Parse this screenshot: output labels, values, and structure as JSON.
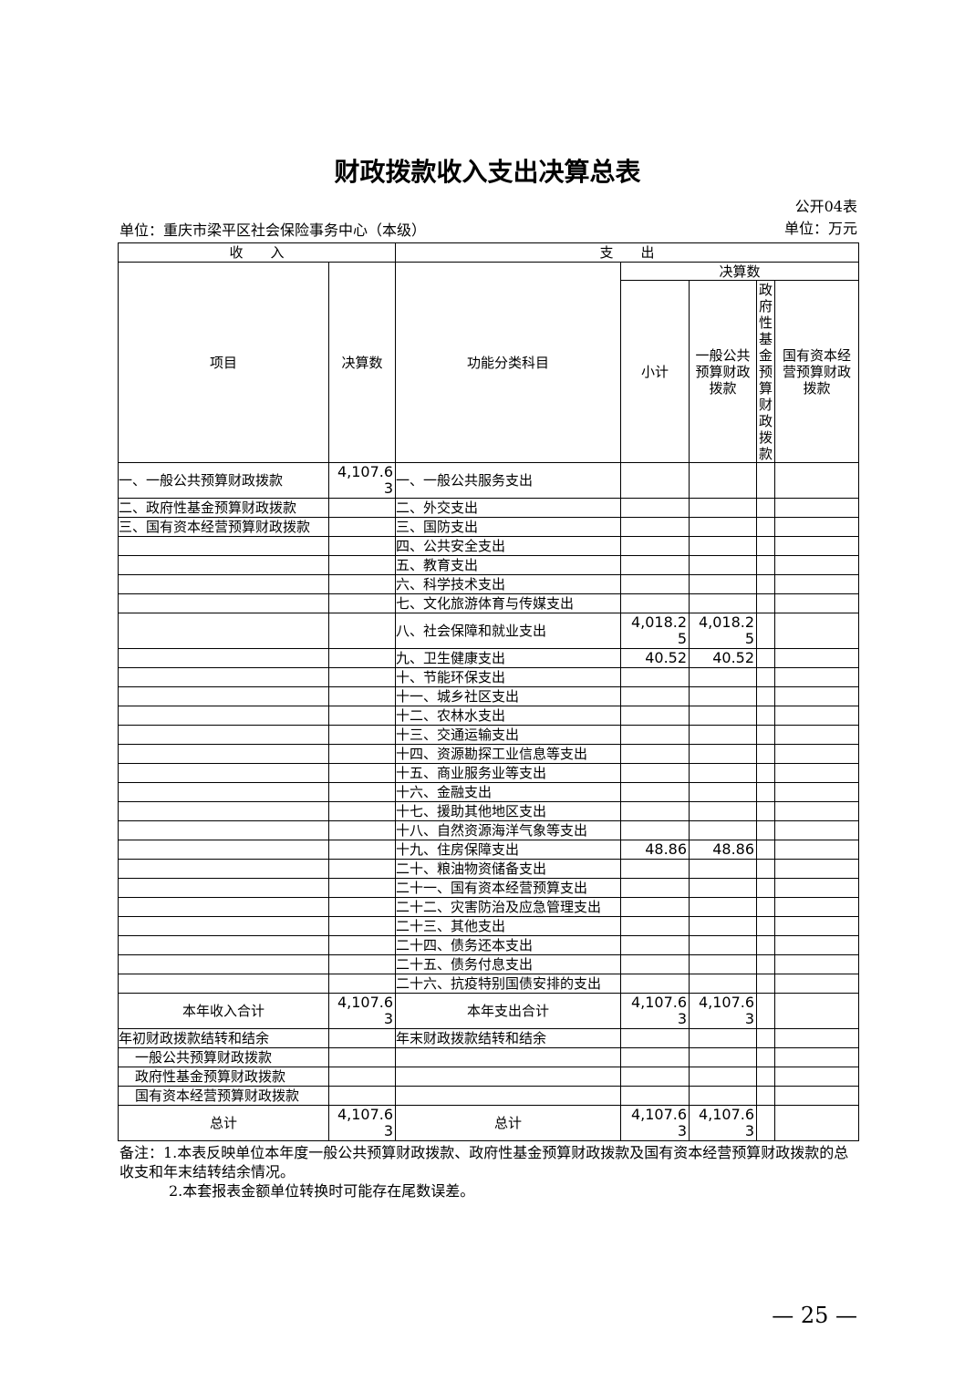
{
  "title": "财政拨款收入支出决算总表",
  "form_no": "公开04表",
  "unit_org": "单位：重庆市梁平区社会保险事务中心（本级）",
  "unit_currency": "单位：万元",
  "headers": {
    "income": "收　　入",
    "expense": "支　　出",
    "final_amount": "决算数",
    "item": "项目",
    "income_amount": "决算数",
    "function_class": "功能分类科目",
    "subtotal": "小计",
    "general_budget": "一般公共预算财政拨款",
    "gov_fund": "政府性基金预算财政拨款",
    "state_capital": "国有资本经营预算财政拨款"
  },
  "rows": [
    {
      "l": "一、一般公共预算财政拨款",
      "lv": "4,107.63",
      "r": "一、一般公共服务支出",
      "s": "",
      "g": "",
      "f": "",
      "k": ""
    },
    {
      "l": "二、政府性基金预算财政拨款",
      "lv": "",
      "r": "二、外交支出",
      "s": "",
      "g": "",
      "f": "",
      "k": ""
    },
    {
      "l": "三、国有资本经营预算财政拨款",
      "lv": "",
      "r": "三、国防支出",
      "s": "",
      "g": "",
      "f": "",
      "k": ""
    },
    {
      "l": "",
      "lv": "",
      "r": "四、公共安全支出",
      "s": "",
      "g": "",
      "f": "",
      "k": ""
    },
    {
      "l": "",
      "lv": "",
      "r": "五、教育支出",
      "s": "",
      "g": "",
      "f": "",
      "k": ""
    },
    {
      "l": "",
      "lv": "",
      "r": "六、科学技术支出",
      "s": "",
      "g": "",
      "f": "",
      "k": ""
    },
    {
      "l": "",
      "lv": "",
      "r": "七、文化旅游体育与传媒支出",
      "s": "",
      "g": "",
      "f": "",
      "k": ""
    },
    {
      "l": "",
      "lv": "",
      "r": "八、社会保障和就业支出",
      "s": "4,018.25",
      "g": "4,018.25",
      "f": "",
      "k": ""
    },
    {
      "l": "",
      "lv": "",
      "r": "九、卫生健康支出",
      "s": "40.52",
      "g": "40.52",
      "f": "",
      "k": ""
    },
    {
      "l": "",
      "lv": "",
      "r": "十、节能环保支出",
      "s": "",
      "g": "",
      "f": "",
      "k": ""
    },
    {
      "l": "",
      "lv": "",
      "r": "十一、城乡社区支出",
      "s": "",
      "g": "",
      "f": "",
      "k": ""
    },
    {
      "l": "",
      "lv": "",
      "r": "十二、农林水支出",
      "s": "",
      "g": "",
      "f": "",
      "k": ""
    },
    {
      "l": "",
      "lv": "",
      "r": "十三、交通运输支出",
      "s": "",
      "g": "",
      "f": "",
      "k": ""
    },
    {
      "l": "",
      "lv": "",
      "r": "十四、资源勘探工业信息等支出",
      "s": "",
      "g": "",
      "f": "",
      "k": ""
    },
    {
      "l": "",
      "lv": "",
      "r": "十五、商业服务业等支出",
      "s": "",
      "g": "",
      "f": "",
      "k": ""
    },
    {
      "l": "",
      "lv": "",
      "r": "十六、金融支出",
      "s": "",
      "g": "",
      "f": "",
      "k": ""
    },
    {
      "l": "",
      "lv": "",
      "r": "十七、援助其他地区支出",
      "s": "",
      "g": "",
      "f": "",
      "k": ""
    },
    {
      "l": "",
      "lv": "",
      "r": "十八、自然资源海洋气象等支出",
      "s": "",
      "g": "",
      "f": "",
      "k": ""
    },
    {
      "l": "",
      "lv": "",
      "r": "十九、住房保障支出",
      "s": "48.86",
      "g": "48.86",
      "f": "",
      "k": ""
    },
    {
      "l": "",
      "lv": "",
      "r": "二十、粮油物资储备支出",
      "s": "",
      "g": "",
      "f": "",
      "k": ""
    },
    {
      "l": "",
      "lv": "",
      "r": "二十一、国有资本经营预算支出",
      "s": "",
      "g": "",
      "f": "",
      "k": ""
    },
    {
      "l": "",
      "lv": "",
      "r": "二十二、灾害防治及应急管理支出",
      "s": "",
      "g": "",
      "f": "",
      "k": ""
    },
    {
      "l": "",
      "lv": "",
      "r": "二十三、其他支出",
      "s": "",
      "g": "",
      "f": "",
      "k": ""
    },
    {
      "l": "",
      "lv": "",
      "r": "二十四、债务还本支出",
      "s": "",
      "g": "",
      "f": "",
      "k": ""
    },
    {
      "l": "",
      "lv": "",
      "r": "二十五、债务付息支出",
      "s": "",
      "g": "",
      "f": "",
      "k": ""
    },
    {
      "l": "",
      "lv": "",
      "r": "二十六、抗疫特别国债安排的支出",
      "s": "",
      "g": "",
      "f": "",
      "k": ""
    },
    {
      "l": "本年收入合计",
      "lv": "4,107.63",
      "r": "本年支出合计",
      "s": "4,107.63",
      "g": "4,107.63",
      "f": "",
      "k": "",
      "center": true
    },
    {
      "l": "年初财政拨款结转和结余",
      "lv": "",
      "r": "年末财政拨款结转和结余",
      "s": "",
      "g": "",
      "f": "",
      "k": ""
    },
    {
      "l": "一般公共预算财政拨款",
      "lv": "",
      "r": "",
      "s": "",
      "g": "",
      "f": "",
      "k": "",
      "indent": true
    },
    {
      "l": "政府性基金预算财政拨款",
      "lv": "",
      "r": "",
      "s": "",
      "g": "",
      "f": "",
      "k": "",
      "indent": true
    },
    {
      "l": "国有资本经营预算财政拨款",
      "lv": "",
      "r": "",
      "s": "",
      "g": "",
      "f": "",
      "k": "",
      "indent": true
    },
    {
      "l": "总计",
      "lv": "4,107.63",
      "r": "总计",
      "s": "4,107.63",
      "g": "4,107.63",
      "f": "",
      "k": "",
      "center": true
    }
  ],
  "notes": {
    "note1": "备注：1.本表反映单位本年度一般公共预算财政拨款、政府性基金预算财政拨款及国有资本经营预算财政拨款的总收支和年末结转结余情况。",
    "note2": "2.本套报表金额单位转换时可能存在尾数误差。"
  },
  "page_number": "— 25 —"
}
